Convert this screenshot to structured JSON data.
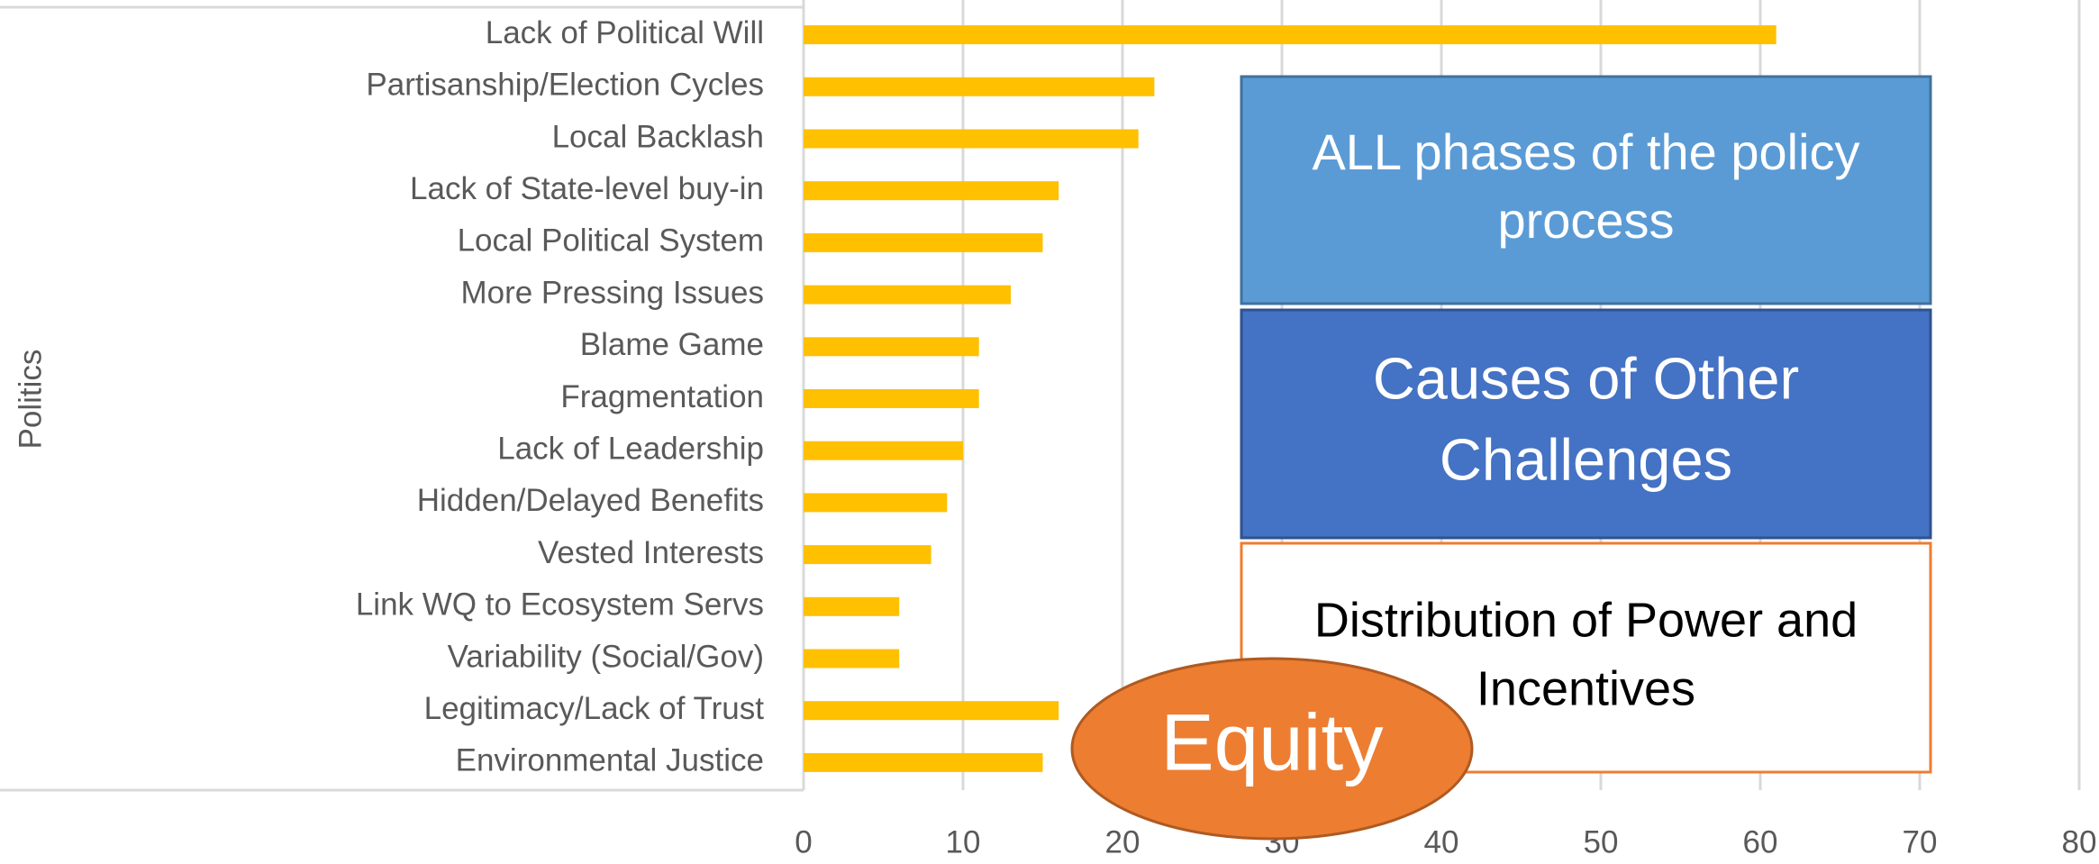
{
  "chart_data": {
    "type": "bar",
    "orientation": "horizontal",
    "y_label": "Politics",
    "categories": [
      "Lack of Political Will",
      "Partisanship/Election Cycles",
      "Local Backlash",
      "Lack of State-level buy-in",
      "Local Political System",
      "More Pressing Issues",
      "Blame Game",
      "Fragmentation",
      "Lack of Leadership",
      "Hidden/Delayed Benefits",
      "Vested Interests",
      "Link WQ to Ecosystem Servs",
      "Variability (Social/Gov)",
      "Legitimacy/Lack of Trust",
      "Environmental Justice"
    ],
    "values": [
      61,
      22,
      21,
      16,
      15,
      13,
      11,
      11,
      10,
      9,
      8,
      6,
      6,
      16,
      15
    ],
    "color": "#ffc000",
    "xlim": [
      0,
      80
    ],
    "xticks": [
      0,
      10,
      20,
      30,
      40,
      50,
      60,
      70,
      80
    ],
    "grid": true,
    "annotations": [
      {
        "lines": [
          "ALL phases of the policy",
          "process"
        ],
        "color": "#5b9bd5"
      },
      {
        "lines": [
          "Causes of Other",
          "Challenges"
        ],
        "color": "#4472c4"
      },
      {
        "lines": [
          "Distribution of Power and",
          "Incentives"
        ],
        "color": "#ffffff"
      },
      {
        "lines": [
          "Equity"
        ],
        "color": "#ed7d31"
      }
    ]
  }
}
